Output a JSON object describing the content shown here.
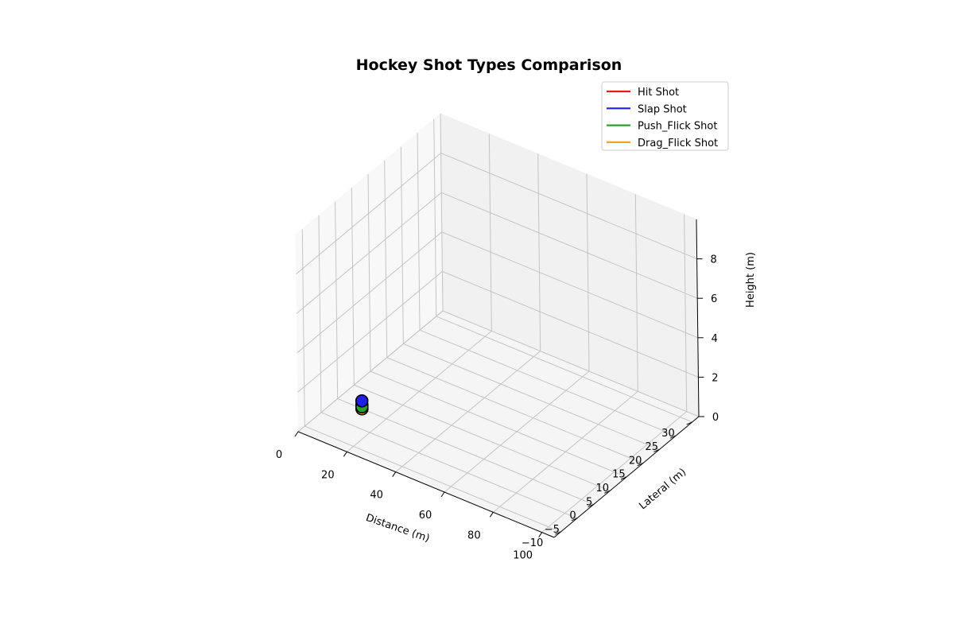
{
  "chart_data": {
    "type": "scatter",
    "projection": "3d",
    "title": "Hockey Shot Types Comparison",
    "xlabel": "Distance (m)",
    "ylabel": "Lateral (m)",
    "zlabel": "Height (m)",
    "xlim": [
      0,
      105
    ],
    "ylim": [
      -12,
      32
    ],
    "zlim": [
      0,
      10
    ],
    "xticks": [
      0,
      20,
      40,
      60,
      80,
      100
    ],
    "yticks": [
      -10,
      -5,
      0,
      5,
      10,
      15,
      20,
      25,
      30
    ],
    "zticks": [
      0,
      2,
      4,
      6,
      8
    ],
    "grid": true,
    "legend_position": "top-right",
    "series": [
      {
        "name": "Hit Shot",
        "color": "#e41a1c",
        "x": [
          10
        ],
        "y": [
          0
        ],
        "z": [
          0.2
        ]
      },
      {
        "name": "Slap Shot",
        "color": "#1f1fe6",
        "x": [
          10
        ],
        "y": [
          0
        ],
        "z": [
          0.4
        ]
      },
      {
        "name": "Push_Flick Shot",
        "color": "#2ca02c",
        "x": [
          10
        ],
        "y": [
          0
        ],
        "z": [
          0.1
        ]
      },
      {
        "name": "Drag_Flick Shot",
        "color": "#f2a21b",
        "x": [
          10
        ],
        "y": [
          0
        ],
        "z": [
          0.0
        ]
      }
    ],
    "point_series_order": [
      3,
      0,
      2,
      1
    ]
  }
}
